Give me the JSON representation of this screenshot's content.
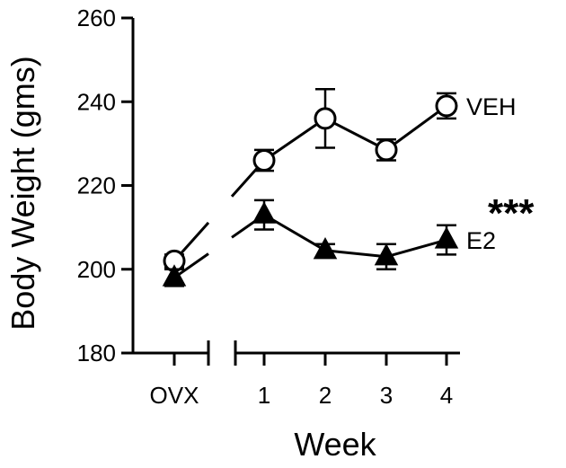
{
  "chart_data": {
    "type": "line",
    "ylabel": "Body Weight (gms)",
    "xlabel": "Week",
    "ylim": [
      180,
      260
    ],
    "yticks": [
      180,
      200,
      220,
      240,
      260
    ],
    "categories": [
      "OVX",
      "1",
      "2",
      "3",
      "4"
    ],
    "axis_break": "between OVX and 1",
    "grid": false,
    "series": [
      {
        "name": "VEH",
        "marker": "open-circle",
        "values": [
          202,
          226,
          236,
          228.5,
          239
        ],
        "error": [
          1.5,
          2.5,
          7,
          2.5,
          3
        ]
      },
      {
        "name": "E2",
        "marker": "filled-triangle",
        "values": [
          198,
          213,
          204.5,
          203,
          207
        ],
        "error": [
          2,
          3.5,
          1.5,
          3,
          3.5
        ]
      }
    ],
    "annotations": [
      {
        "text": "***",
        "series": "E2"
      }
    ]
  }
}
